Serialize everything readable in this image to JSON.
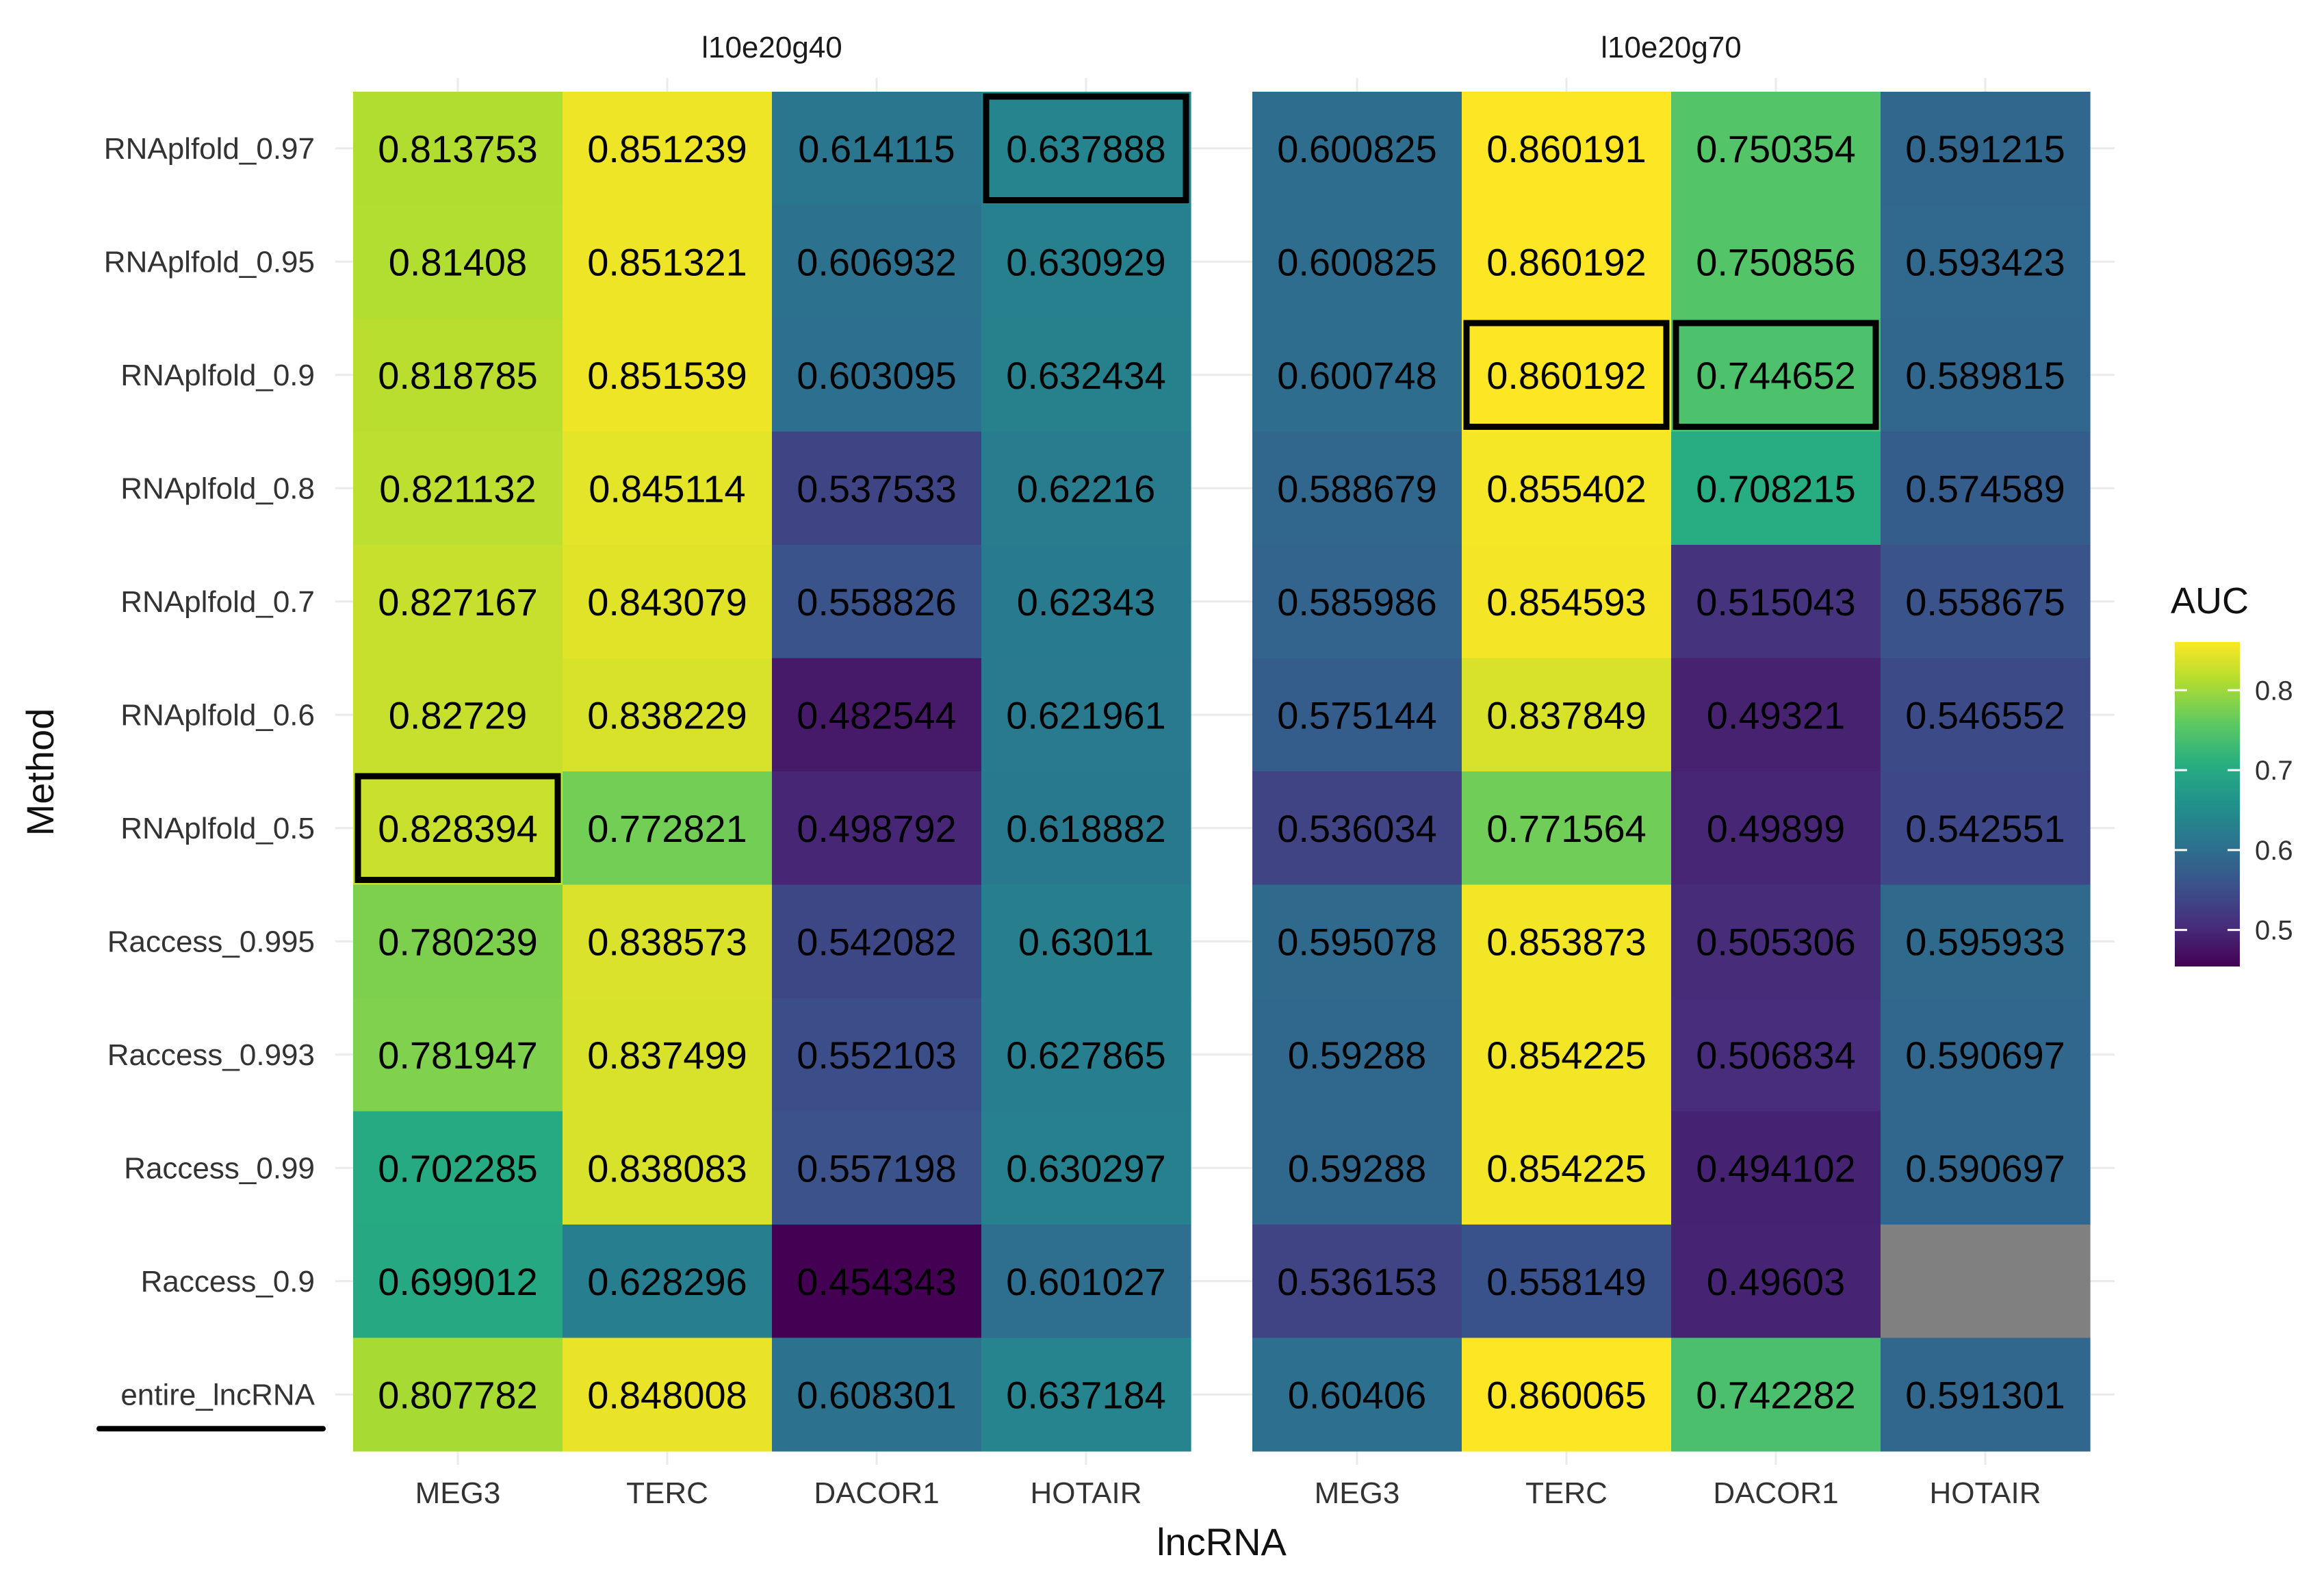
{
  "chart_data": {
    "type": "heatmap",
    "facets": [
      "l10e20g40",
      "l10e20g70"
    ],
    "categories": [
      "MEG3",
      "TERC",
      "DACOR1",
      "HOTAIR"
    ],
    "methods": [
      "RNAplfold_0.97",
      "RNAplfold_0.95",
      "RNAplfold_0.9",
      "RNAplfold_0.8",
      "RNAplfold_0.7",
      "RNAplfold_0.6",
      "RNAplfold_0.5",
      "Raccess_0.995",
      "Raccess_0.993",
      "Raccess_0.99",
      "Raccess_0.9",
      "entire_lncRNA"
    ],
    "values": [
      [
        [
          "0.813753",
          "0.851239",
          "0.614115",
          "0.637888"
        ],
        [
          "0.81408",
          "0.851321",
          "0.606932",
          "0.630929"
        ],
        [
          "0.818785",
          "0.851539",
          "0.603095",
          "0.632434"
        ],
        [
          "0.821132",
          "0.845114",
          "0.537533",
          "0.62216"
        ],
        [
          "0.827167",
          "0.843079",
          "0.558826",
          "0.62343"
        ],
        [
          "0.82729",
          "0.838229",
          "0.482544",
          "0.621961"
        ],
        [
          "0.828394",
          "0.772821",
          "0.498792",
          "0.618882"
        ],
        [
          "0.780239",
          "0.838573",
          "0.542082",
          "0.63011"
        ],
        [
          "0.781947",
          "0.837499",
          "0.552103",
          "0.627865"
        ],
        [
          "0.702285",
          "0.838083",
          "0.557198",
          "0.630297"
        ],
        [
          "0.699012",
          "0.628296",
          "0.454343",
          "0.601027"
        ],
        [
          "0.807782",
          "0.848008",
          "0.608301",
          "0.637184"
        ]
      ],
      [
        [
          "0.600825",
          "0.860191",
          "0.750354",
          "0.591215"
        ],
        [
          "0.600825",
          "0.860192",
          "0.750856",
          "0.593423"
        ],
        [
          "0.600748",
          "0.860192",
          "0.744652",
          "0.589815"
        ],
        [
          "0.588679",
          "0.855402",
          "0.708215",
          "0.574589"
        ],
        [
          "0.585986",
          "0.854593",
          "0.515043",
          "0.558675"
        ],
        [
          "0.575144",
          "0.837849",
          "0.49321",
          "0.546552"
        ],
        [
          "0.536034",
          "0.771564",
          "0.49899",
          "0.542551"
        ],
        [
          "0.595078",
          "0.853873",
          "0.505306",
          "0.595933"
        ],
        [
          "0.59288",
          "0.854225",
          "0.506834",
          "0.590697"
        ],
        [
          "0.59288",
          "0.854225",
          "0.494102",
          "0.590697"
        ],
        [
          "0.536153",
          "0.558149",
          "0.49603",
          null
        ],
        [
          "0.60406",
          "0.860065",
          "0.742282",
          "0.591301"
        ]
      ]
    ],
    "highlighted": [
      {
        "facet": 0,
        "method": "RNAplfold_0.97",
        "lncRNA": "HOTAIR"
      },
      {
        "facet": 0,
        "method": "RNAplfold_0.5",
        "lncRNA": "MEG3"
      },
      {
        "facet": 1,
        "method": "RNAplfold_0.9",
        "lncRNA": "TERC"
      },
      {
        "facet": 1,
        "method": "RNAplfold_0.9",
        "lncRNA": "DACOR1"
      }
    ],
    "underlined_method": "entire_lncRNA",
    "xlabel": "lncRNA",
    "ylabel": "Method",
    "legend": {
      "title": "AUC",
      "ticks": [
        "0.8",
        "0.7",
        "0.6",
        "0.5"
      ],
      "tick_values": [
        0.8,
        0.7,
        0.6,
        0.5
      ],
      "range": [
        0.454343,
        0.860192
      ],
      "placement": "right"
    },
    "colorscale": "viridis",
    "na_color": "#808080"
  }
}
